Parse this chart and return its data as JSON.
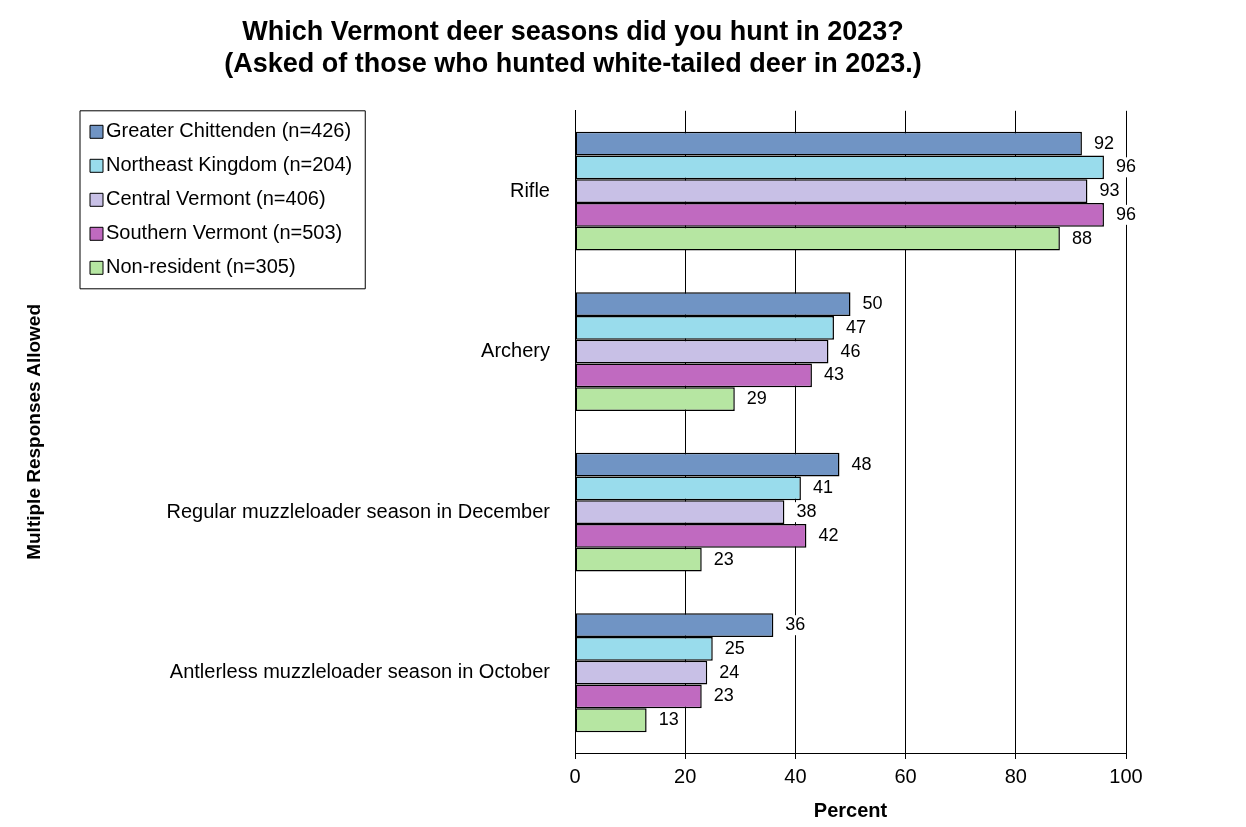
{
  "chart_data": {
    "type": "bar",
    "orientation": "horizontal",
    "title": "Which Vermont deer seasons did you hunt in 2023?\n(Asked of those who hunted white-tailed deer in 2023.)",
    "xlabel": "Percent",
    "annotations": [
      "Multiple Responses Allowed"
    ],
    "categories": [
      "Rifle",
      "Archery",
      "Regular muzzleloader season in December",
      "Antlerless muzzleloader season in October"
    ],
    "series": [
      {
        "name": "Greater Chittenden (n=426)",
        "color": "#7094c4",
        "values": [
          92,
          50,
          48,
          36
        ]
      },
      {
        "name": "Northeast Kingdom (n=204)",
        "color": "#99dcec",
        "values": [
          96,
          47,
          41,
          25
        ]
      },
      {
        "name": "Central Vermont (n=406)",
        "color": "#c8c0e6",
        "values": [
          93,
          46,
          38,
          24
        ]
      },
      {
        "name": "Southern Vermont (n=503)",
        "color": "#c06ac0",
        "values": [
          96,
          43,
          42,
          23
        ]
      },
      {
        "name": "Non-resident (n=305)",
        "color": "#b6e6a2",
        "values": [
          88,
          29,
          23,
          13
        ]
      }
    ],
    "xlim": [
      0,
      100
    ],
    "xticks": [
      0,
      20,
      40,
      60,
      80,
      100
    ],
    "grid": "x",
    "legend": "top left",
    "data_labels": true
  }
}
